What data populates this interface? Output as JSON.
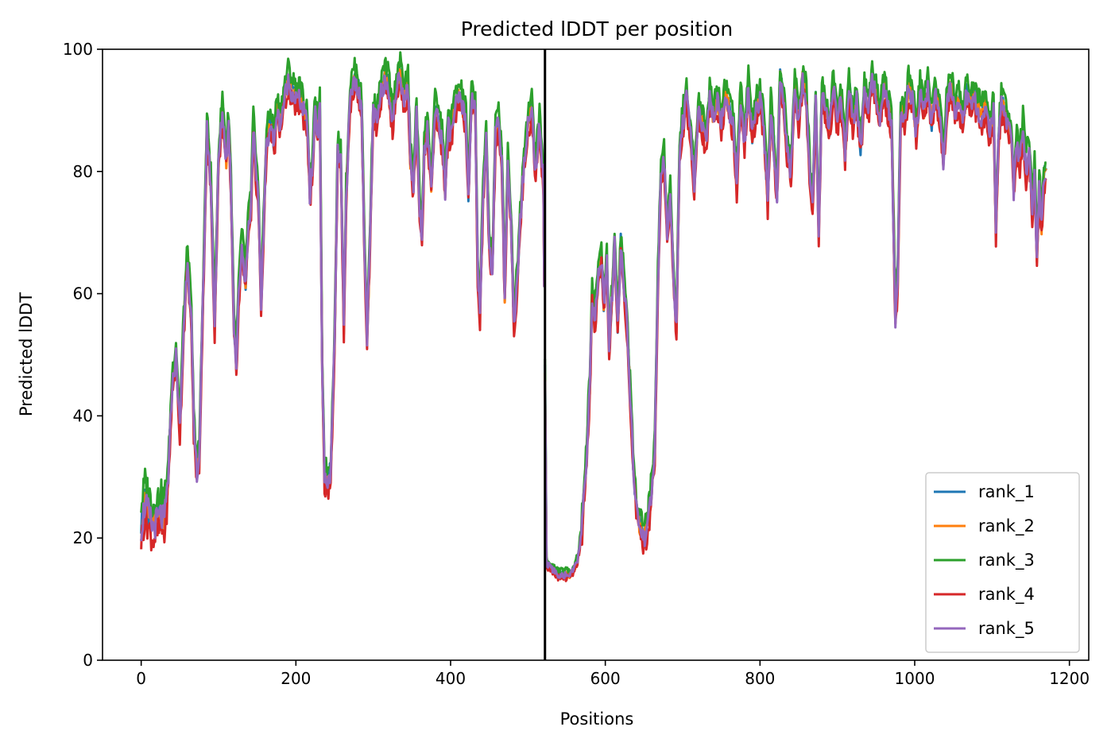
{
  "chart_data": {
    "type": "line",
    "title": "Predicted lDDT per position",
    "xlabel": "Positions",
    "ylabel": "Predicted lDDT",
    "xlim": [
      -50,
      1225
    ],
    "ylim": [
      0,
      100
    ],
    "xticks": [
      0,
      200,
      400,
      600,
      800,
      1000,
      1200
    ],
    "yticks": [
      0,
      20,
      40,
      60,
      80,
      100
    ],
    "grid": false,
    "legend_position": "lower right",
    "vline_x": 522,
    "colors": {
      "rank_1": "#1f77b4",
      "rank_2": "#ff7f0e",
      "rank_3": "#2ca02c",
      "rank_4": "#d62728",
      "rank_5": "#9467bd",
      "vline": "#000000"
    },
    "base_profile": [
      [
        0,
        22
      ],
      [
        5,
        26
      ],
      [
        10,
        24
      ],
      [
        15,
        22
      ],
      [
        20,
        23
      ],
      [
        25,
        24
      ],
      [
        30,
        23
      ],
      [
        35,
        30
      ],
      [
        40,
        45
      ],
      [
        45,
        50
      ],
      [
        50,
        38
      ],
      [
        55,
        55
      ],
      [
        60,
        66
      ],
      [
        65,
        55
      ],
      [
        68,
        38
      ],
      [
        72,
        31
      ],
      [
        75,
        33
      ],
      [
        80,
        60
      ],
      [
        85,
        87
      ],
      [
        90,
        78
      ],
      [
        95,
        55
      ],
      [
        100,
        82
      ],
      [
        105,
        90
      ],
      [
        110,
        82
      ],
      [
        113,
        88
      ],
      [
        116,
        78
      ],
      [
        120,
        55
      ],
      [
        123,
        48
      ],
      [
        126,
        60
      ],
      [
        130,
        68
      ],
      [
        135,
        62
      ],
      [
        138,
        70
      ],
      [
        142,
        75
      ],
      [
        145,
        88
      ],
      [
        148,
        80
      ],
      [
        152,
        74
      ],
      [
        155,
        58
      ],
      [
        158,
        70
      ],
      [
        162,
        85
      ],
      [
        168,
        88
      ],
      [
        172,
        84
      ],
      [
        175,
        90
      ],
      [
        180,
        88
      ],
      [
        185,
        92
      ],
      [
        190,
        95
      ],
      [
        195,
        93
      ],
      [
        200,
        92
      ],
      [
        205,
        92
      ],
      [
        210,
        90
      ],
      [
        215,
        88
      ],
      [
        218,
        76
      ],
      [
        222,
        82
      ],
      [
        225,
        91
      ],
      [
        228,
        86
      ],
      [
        231,
        90
      ],
      [
        234,
        48
      ],
      [
        237,
        30
      ],
      [
        241,
        29
      ],
      [
        245,
        31
      ],
      [
        250,
        52
      ],
      [
        254,
        83
      ],
      [
        258,
        82
      ],
      [
        262,
        55
      ],
      [
        265,
        76
      ],
      [
        270,
        92
      ],
      [
        275,
        95
      ],
      [
        280,
        94
      ],
      [
        285,
        90
      ],
      [
        288,
        72
      ],
      [
        292,
        52
      ],
      [
        296,
        70
      ],
      [
        300,
        90
      ],
      [
        305,
        88
      ],
      [
        310,
        93
      ],
      [
        315,
        95
      ],
      [
        320,
        94
      ],
      [
        325,
        88
      ],
      [
        330,
        94
      ],
      [
        335,
        96
      ],
      [
        340,
        92
      ],
      [
        345,
        94
      ],
      [
        348,
        82
      ],
      [
        352,
        78
      ],
      [
        356,
        90
      ],
      [
        360,
        74
      ],
      [
        363,
        70
      ],
      [
        366,
        84
      ],
      [
        370,
        87
      ],
      [
        375,
        78
      ],
      [
        380,
        90
      ],
      [
        385,
        88
      ],
      [
        390,
        84
      ],
      [
        393,
        77
      ],
      [
        397,
        88
      ],
      [
        400,
        86
      ],
      [
        405,
        90
      ],
      [
        410,
        92
      ],
      [
        415,
        91
      ],
      [
        420,
        88
      ],
      [
        423,
        76
      ],
      [
        427,
        92
      ],
      [
        432,
        90
      ],
      [
        435,
        64
      ],
      [
        438,
        57
      ],
      [
        442,
        76
      ],
      [
        446,
        86
      ],
      [
        450,
        68
      ],
      [
        454,
        64
      ],
      [
        458,
        86
      ],
      [
        462,
        88
      ],
      [
        466,
        83
      ],
      [
        470,
        60
      ],
      [
        474,
        82
      ],
      [
        478,
        72
      ],
      [
        482,
        55
      ],
      [
        486,
        62
      ],
      [
        490,
        72
      ],
      [
        495,
        82
      ],
      [
        500,
        88
      ],
      [
        505,
        90
      ],
      [
        510,
        80
      ],
      [
        515,
        88
      ],
      [
        520,
        78
      ],
      [
        524,
        16
      ],
      [
        530,
        15
      ],
      [
        540,
        14
      ],
      [
        550,
        14
      ],
      [
        555,
        14
      ],
      [
        560,
        15
      ],
      [
        565,
        17
      ],
      [
        570,
        22
      ],
      [
        575,
        32
      ],
      [
        580,
        45
      ],
      [
        583,
        60
      ],
      [
        586,
        55
      ],
      [
        590,
        62
      ],
      [
        595,
        66
      ],
      [
        598,
        58
      ],
      [
        602,
        65
      ],
      [
        605,
        52
      ],
      [
        609,
        60
      ],
      [
        612,
        68
      ],
      [
        616,
        55
      ],
      [
        620,
        68
      ],
      [
        624,
        62
      ],
      [
        628,
        55
      ],
      [
        632,
        44
      ],
      [
        636,
        32
      ],
      [
        640,
        25
      ],
      [
        645,
        22
      ],
      [
        650,
        20
      ],
      [
        655,
        22
      ],
      [
        660,
        28
      ],
      [
        664,
        35
      ],
      [
        668,
        62
      ],
      [
        672,
        80
      ],
      [
        676,
        82
      ],
      [
        680,
        70
      ],
      [
        684,
        76
      ],
      [
        688,
        63
      ],
      [
        692,
        55
      ],
      [
        696,
        83
      ],
      [
        700,
        88
      ],
      [
        705,
        92
      ],
      [
        710,
        86
      ],
      [
        715,
        78
      ],
      [
        720,
        90
      ],
      [
        725,
        88
      ],
      [
        730,
        85
      ],
      [
        735,
        92
      ],
      [
        740,
        89
      ],
      [
        745,
        92
      ],
      [
        750,
        88
      ],
      [
        755,
        93
      ],
      [
        760,
        90
      ],
      [
        765,
        88
      ],
      [
        770,
        78
      ],
      [
        775,
        92
      ],
      [
        780,
        85
      ],
      [
        785,
        94
      ],
      [
        790,
        86
      ],
      [
        795,
        90
      ],
      [
        800,
        92
      ],
      [
        805,
        87
      ],
      [
        810,
        75
      ],
      [
        814,
        90
      ],
      [
        818,
        84
      ],
      [
        822,
        76
      ],
      [
        826,
        95
      ],
      [
        830,
        92
      ],
      [
        835,
        84
      ],
      [
        840,
        80
      ],
      [
        845,
        94
      ],
      [
        850,
        88
      ],
      [
        855,
        95
      ],
      [
        860,
        92
      ],
      [
        865,
        78
      ],
      [
        868,
        75
      ],
      [
        872,
        92
      ],
      [
        876,
        70
      ],
      [
        880,
        93
      ],
      [
        885,
        90
      ],
      [
        890,
        87
      ],
      [
        895,
        94
      ],
      [
        900,
        88
      ],
      [
        905,
        92
      ],
      [
        910,
        83
      ],
      [
        915,
        94
      ],
      [
        920,
        88
      ],
      [
        925,
        92
      ],
      [
        930,
        84
      ],
      [
        935,
        93
      ],
      [
        940,
        90
      ],
      [
        945,
        95
      ],
      [
        950,
        93
      ],
      [
        955,
        89
      ],
      [
        960,
        94
      ],
      [
        965,
        91
      ],
      [
        970,
        88
      ],
      [
        975,
        56
      ],
      [
        978,
        62
      ],
      [
        982,
        90
      ],
      [
        987,
        88
      ],
      [
        992,
        94
      ],
      [
        997,
        92
      ],
      [
        1002,
        86
      ],
      [
        1007,
        93
      ],
      [
        1012,
        90
      ],
      [
        1017,
        94
      ],
      [
        1022,
        88
      ],
      [
        1027,
        93
      ],
      [
        1032,
        90
      ],
      [
        1037,
        82
      ],
      [
        1042,
        92
      ],
      [
        1047,
        94
      ],
      [
        1052,
        90
      ],
      [
        1057,
        92
      ],
      [
        1062,
        88
      ],
      [
        1067,
        93
      ],
      [
        1072,
        91
      ],
      [
        1077,
        92
      ],
      [
        1082,
        90
      ],
      [
        1087,
        89
      ],
      [
        1092,
        91
      ],
      [
        1097,
        86
      ],
      [
        1102,
        90
      ],
      [
        1105,
        70
      ],
      [
        1108,
        84
      ],
      [
        1112,
        91
      ],
      [
        1116,
        90
      ],
      [
        1120,
        88
      ],
      [
        1125,
        86
      ],
      [
        1128,
        77
      ],
      [
        1132,
        85
      ],
      [
        1136,
        82
      ],
      [
        1140,
        87
      ],
      [
        1144,
        80
      ],
      [
        1148,
        84
      ],
      [
        1152,
        74
      ],
      [
        1155,
        80
      ],
      [
        1158,
        66
      ],
      [
        1161,
        78
      ],
      [
        1164,
        71
      ],
      [
        1167,
        79
      ],
      [
        1170,
        80
      ]
    ],
    "series": [
      {
        "name": "rank_1",
        "offset": 0.2
      },
      {
        "name": "rank_2",
        "offset": 0.0
      },
      {
        "name": "rank_3",
        "offset": 2.2
      },
      {
        "name": "rank_4",
        "offset": -1.6
      },
      {
        "name": "rank_5",
        "offset": -0.2
      }
    ]
  }
}
